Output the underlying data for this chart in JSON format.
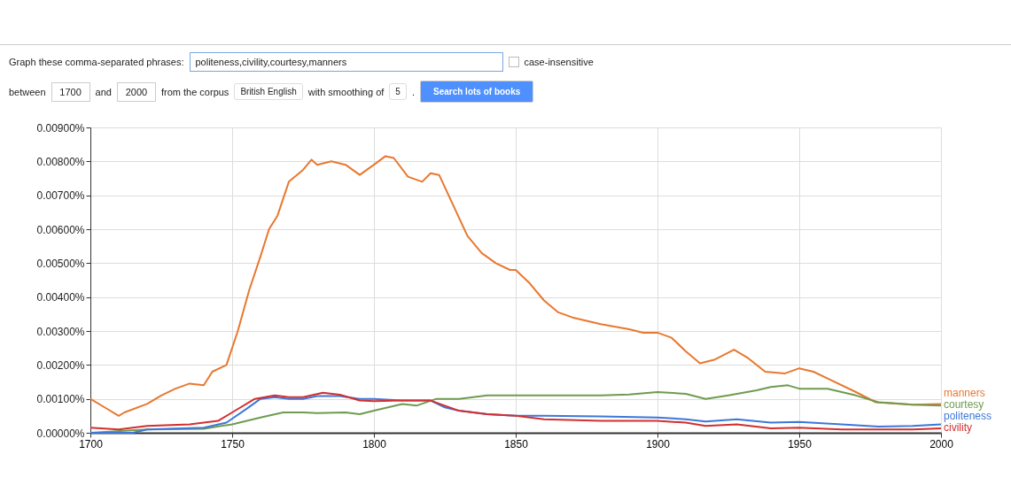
{
  "chart_data": {
    "type": "line",
    "annotations": [
      "Graph these comma-separated phrases:",
      "politeness,civility,courtesy,manners",
      "case-insensitive",
      "between",
      "1700",
      "and",
      "2000",
      "from the corpus",
      "British English",
      "with smoothing of",
      "5",
      ".",
      "Search lots of books"
    ],
    "xlim": [
      1700,
      2000
    ],
    "xticks": [
      1700,
      1750,
      1800,
      1850,
      1900,
      1950,
      2000
    ],
    "ylim": [
      0,
      0.009
    ],
    "yticks": [
      {
        "value": 0,
        "label": "0.00000%"
      },
      {
        "value": 0.001,
        "label": "0.00100%"
      },
      {
        "value": 0.002,
        "label": "0.00200%"
      },
      {
        "value": 0.003,
        "label": "0.00300%"
      },
      {
        "value": 0.004,
        "label": "0.00400%"
      },
      {
        "value": 0.005,
        "label": "0.00500%"
      },
      {
        "value": 0.006,
        "label": "0.00600%"
      },
      {
        "value": 0.007,
        "label": "0.00700%"
      },
      {
        "value": 0.008,
        "label": "0.00800%"
      },
      {
        "value": 0.009,
        "label": "0.00900%"
      }
    ],
    "grid": true,
    "line_style": "solid",
    "series": [
      {
        "name": "manners",
        "color": "#e8782f",
        "x": [
          1700,
          1705,
          1710,
          1712,
          1720,
          1725,
          1730,
          1735,
          1740,
          1743,
          1748,
          1752,
          1756,
          1760,
          1763,
          1766,
          1770,
          1775,
          1778,
          1780,
          1785,
          1790,
          1795,
          1800,
          1804,
          1807,
          1812,
          1817,
          1820,
          1823,
          1828,
          1833,
          1838,
          1843,
          1848,
          1850,
          1855,
          1860,
          1865,
          1870,
          1880,
          1890,
          1895,
          1900,
          1905,
          1910,
          1915,
          1920,
          1927,
          1932,
          1938,
          1945,
          1950,
          1955,
          1960,
          1970,
          1977,
          1990,
          2000
        ],
        "values": [
          0.001,
          0.00075,
          0.0005,
          0.0006,
          0.00085,
          0.0011,
          0.0013,
          0.00145,
          0.0014,
          0.0018,
          0.002,
          0.003,
          0.0042,
          0.0052,
          0.006,
          0.0064,
          0.0074,
          0.00775,
          0.00805,
          0.0079,
          0.008,
          0.0079,
          0.0076,
          0.0079,
          0.00815,
          0.0081,
          0.00755,
          0.0074,
          0.00765,
          0.0076,
          0.0067,
          0.0058,
          0.0053,
          0.005,
          0.0048,
          0.0048,
          0.0044,
          0.0039,
          0.00355,
          0.0034,
          0.0032,
          0.00305,
          0.00295,
          0.00295,
          0.0028,
          0.0024,
          0.00205,
          0.00215,
          0.00245,
          0.0022,
          0.0018,
          0.00175,
          0.0019,
          0.0018,
          0.0016,
          0.0012,
          0.0009,
          0.00083,
          0.00085
        ]
      },
      {
        "name": "courtesy",
        "color": "#6f9b4f",
        "x": [
          1700,
          1720,
          1740,
          1750,
          1760,
          1768,
          1775,
          1780,
          1790,
          1795,
          1800,
          1810,
          1815,
          1822,
          1830,
          1840,
          1850,
          1860,
          1880,
          1890,
          1900,
          1910,
          1917,
          1925,
          1935,
          1940,
          1946,
          1950,
          1960,
          1970,
          1978,
          1990,
          2000
        ],
        "values": [
          0,
          0.0001,
          0.00012,
          0.00025,
          0.00045,
          0.0006,
          0.0006,
          0.00058,
          0.0006,
          0.00055,
          0.00065,
          0.00085,
          0.0008,
          0.001,
          0.001,
          0.0011,
          0.0011,
          0.0011,
          0.0011,
          0.00113,
          0.0012,
          0.00115,
          0.001,
          0.0011,
          0.00125,
          0.00135,
          0.0014,
          0.0013,
          0.0013,
          0.0011,
          0.0009,
          0.00083,
          0.0008
        ]
      },
      {
        "name": "politeness",
        "color": "#3c78d8",
        "x": [
          1700,
          1715,
          1720,
          1740,
          1748,
          1755,
          1760,
          1765,
          1770,
          1775,
          1780,
          1788,
          1795,
          1800,
          1810,
          1820,
          1825,
          1830,
          1840,
          1850,
          1860,
          1880,
          1900,
          1910,
          1917,
          1928,
          1940,
          1950,
          1965,
          1978,
          1990,
          2000
        ],
        "values": [
          0,
          0,
          0.0001,
          0.00015,
          0.0003,
          0.0007,
          0.001,
          0.00105,
          0.001,
          0.001,
          0.00108,
          0.00108,
          0.001,
          0.001,
          0.00095,
          0.00095,
          0.00075,
          0.00065,
          0.00055,
          0.0005,
          0.0005,
          0.00048,
          0.00045,
          0.0004,
          0.00033,
          0.0004,
          0.0003,
          0.00032,
          0.00025,
          0.00018,
          0.0002,
          0.00025
        ]
      },
      {
        "name": "civility",
        "color": "#d32f2f",
        "x": [
          1700,
          1710,
          1720,
          1735,
          1745,
          1750,
          1758,
          1765,
          1770,
          1775,
          1782,
          1788,
          1795,
          1800,
          1810,
          1820,
          1825,
          1830,
          1840,
          1850,
          1860,
          1880,
          1900,
          1910,
          1917,
          1928,
          1940,
          1950,
          1965,
          1978,
          1990,
          2000
        ],
        "values": [
          0.00015,
          0.0001,
          0.0002,
          0.00025,
          0.00035,
          0.0006,
          0.001,
          0.0011,
          0.00105,
          0.00105,
          0.00118,
          0.00112,
          0.00095,
          0.00093,
          0.00095,
          0.00095,
          0.0008,
          0.00065,
          0.00055,
          0.0005,
          0.0004,
          0.00035,
          0.00035,
          0.0003,
          0.0002,
          0.00025,
          0.00013,
          0.00015,
          0.0001,
          0.0001,
          0.0001,
          0.00013
        ]
      }
    ]
  }
}
